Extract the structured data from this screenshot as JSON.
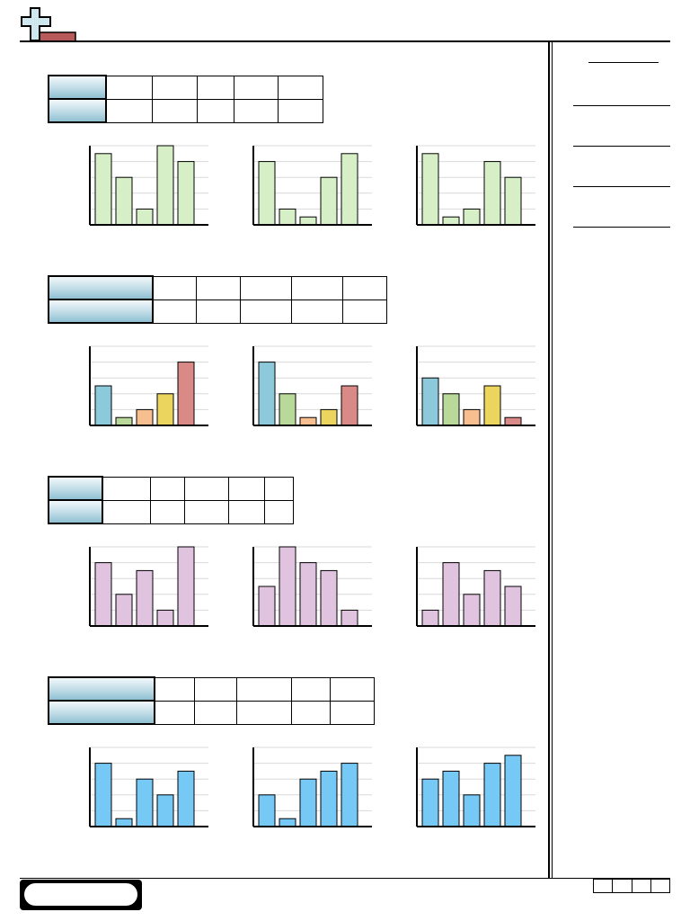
{
  "colors": {
    "logo_cross": "#cfe8f0",
    "logo_bar": "#b85a5a",
    "set1": "#d6efc7",
    "set2": [
      "#8ccadb",
      "#b9d99a",
      "#f7bf8f",
      "#ebd55e",
      "#d98a86"
    ],
    "set3": "#e0c3df",
    "set4": "#77c9f5",
    "grid": "#d9d9d9",
    "table_head": "#a9d0df"
  },
  "icons": {
    "logo": "plus-logo-icon"
  },
  "sections": [
    {
      "table": {
        "header_labels": [
          "",
          ""
        ],
        "cells": [
          [
            "",
            "",
            "",
            "",
            ""
          ],
          [
            "",
            "",
            "",
            "",
            ""
          ]
        ]
      },
      "color_key": "set1",
      "chart_data": [
        {
          "type": "bar",
          "values": [
            9,
            6,
            2,
            10,
            8
          ],
          "ylim": [
            0,
            10
          ],
          "grid": true
        },
        {
          "type": "bar",
          "values": [
            8,
            2,
            1,
            6,
            9
          ],
          "ylim": [
            0,
            10
          ],
          "grid": true
        },
        {
          "type": "bar",
          "values": [
            9,
            1,
            2,
            8,
            6
          ],
          "ylim": [
            0,
            10
          ],
          "grid": true
        }
      ]
    },
    {
      "table": {
        "header_labels": [
          "",
          ""
        ],
        "cells": [
          [
            "",
            "",
            "",
            "",
            ""
          ],
          [
            "",
            "",
            "",
            "",
            ""
          ]
        ]
      },
      "color_key": "set2",
      "chart_data": [
        {
          "type": "bar",
          "values": [
            5,
            1,
            2,
            4,
            8
          ],
          "ylim": [
            0,
            10
          ],
          "grid": true
        },
        {
          "type": "bar",
          "values": [
            8,
            4,
            1,
            2,
            5
          ],
          "ylim": [
            0,
            10
          ],
          "grid": true
        },
        {
          "type": "bar",
          "values": [
            6,
            4,
            2,
            5,
            1
          ],
          "ylim": [
            0,
            10
          ],
          "grid": true
        }
      ]
    },
    {
      "table": {
        "header_labels": [
          "",
          ""
        ],
        "cells": [
          [
            "",
            "",
            "",
            "",
            ""
          ],
          [
            "",
            "",
            "",
            "",
            ""
          ]
        ]
      },
      "color_key": "set3",
      "chart_data": [
        {
          "type": "bar",
          "values": [
            8,
            4,
            7,
            2,
            10
          ],
          "ylim": [
            0,
            10
          ],
          "grid": true
        },
        {
          "type": "bar",
          "values": [
            5,
            10,
            8,
            7,
            2
          ],
          "ylim": [
            0,
            10
          ],
          "grid": true
        },
        {
          "type": "bar",
          "values": [
            2,
            8,
            4,
            7,
            5
          ],
          "ylim": [
            0,
            10
          ],
          "grid": true
        }
      ]
    },
    {
      "table": {
        "header_labels": [
          "",
          ""
        ],
        "cells": [
          [
            "",
            "",
            "",
            "",
            ""
          ],
          [
            "",
            "",
            "",
            "",
            ""
          ]
        ]
      },
      "color_key": "set4",
      "chart_data": [
        {
          "type": "bar",
          "values": [
            8,
            1,
            6,
            4,
            7
          ],
          "ylim": [
            0,
            10
          ],
          "grid": true
        },
        {
          "type": "bar",
          "values": [
            4,
            1,
            6,
            7,
            8
          ],
          "ylim": [
            0,
            10
          ],
          "grid": true
        },
        {
          "type": "bar",
          "values": [
            6,
            7,
            4,
            8,
            9
          ],
          "ylim": [
            0,
            10
          ],
          "grid": true
        }
      ]
    }
  ],
  "answers": [
    "",
    "",
    "",
    "",
    ""
  ],
  "footer": {
    "pill_text": "",
    "page_boxes": [
      "",
      "",
      "",
      ""
    ]
  }
}
